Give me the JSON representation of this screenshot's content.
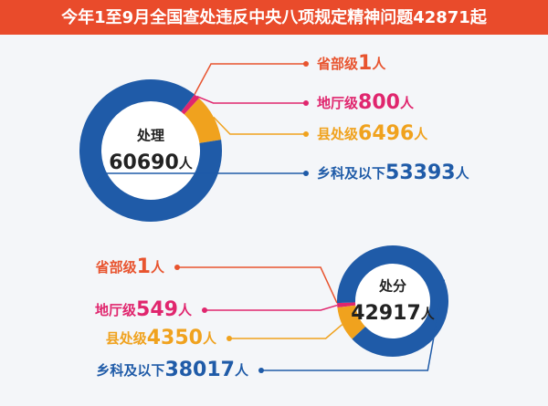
{
  "header": {
    "title": "今年1至9月全国查处违反中央八项规定精神问题42871起"
  },
  "chart_data": [
    {
      "type": "pie",
      "center_label": "处理",
      "total": 60690,
      "unit": "人",
      "categories": [
        "省部级",
        "地厅级",
        "县处级",
        "乡科及以下"
      ],
      "values": [
        1,
        800,
        6496,
        53393
      ],
      "colors": [
        "#e8542f",
        "#e0266e",
        "#f0a21e",
        "#1f5ba8"
      ]
    },
    {
      "type": "pie",
      "center_label": "处分",
      "total": 42917,
      "unit": "人",
      "categories": [
        "省部级",
        "地厅级",
        "县处级",
        "乡科及以下"
      ],
      "values": [
        1,
        549,
        4350,
        38017
      ],
      "colors": [
        "#e8542f",
        "#e0266e",
        "#f0a21e",
        "#1f5ba8"
      ]
    }
  ]
}
